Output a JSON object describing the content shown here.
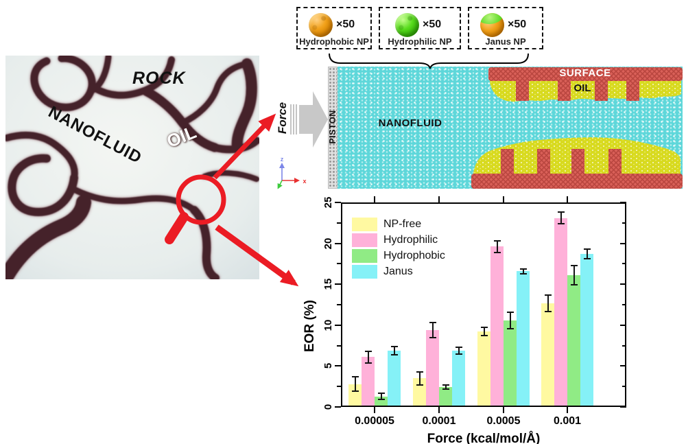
{
  "photo": {
    "rock_label": "ROCK",
    "nanofluid_label": "NANOFLUID",
    "oil_label": "OIL"
  },
  "np_legend": {
    "items": [
      {
        "label": "Hydrophobic NP",
        "count_label": "×50",
        "color": "#e8920e"
      },
      {
        "label": "Hydrophilic NP",
        "count_label": "×50",
        "color": "#44cc11"
      },
      {
        "label": "Janus NP",
        "count_label": "×50",
        "color": "#e8920e/#44cc11"
      }
    ]
  },
  "simulation": {
    "force_label": "Force",
    "piston_label": "PISTON",
    "nanofluid_label": "NANOFLUID",
    "surface_label": "SURFACE",
    "oil_label": "OIL",
    "axis_x_label": "x",
    "axis_z_label": "z",
    "colors": {
      "nanofluid": "#5ed7da",
      "surface": "#d96058",
      "oil": "#d8da1f",
      "piston": "#d9d9d9",
      "annotation_red": "#eb1c24"
    }
  },
  "chart_data": {
    "type": "bar",
    "title": "",
    "xlabel": "Force (kcal/mol/Å)",
    "ylabel": "EOR (%)",
    "categories": [
      "0.00005",
      "0.0001",
      "0.0005",
      "0.001"
    ],
    "series": [
      {
        "name": "NP-free",
        "color": "#fff9a1",
        "values": [
          2.8,
          3.5,
          9.2,
          12.7
        ],
        "errors": [
          0.9,
          0.8,
          0.5,
          1.0
        ]
      },
      {
        "name": "Hydrophilic",
        "color": "#ffb1d9",
        "values": [
          6.1,
          9.4,
          19.6,
          23.1
        ],
        "errors": [
          0.7,
          0.9,
          0.7,
          0.7
        ]
      },
      {
        "name": "Hydrophobic",
        "color": "#90eb85",
        "values": [
          1.3,
          2.4,
          10.6,
          16.1
        ],
        "errors": [
          0.35,
          0.25,
          1.0,
          1.2
        ]
      },
      {
        "name": "Janus",
        "color": "#85f1f7",
        "values": [
          6.9,
          6.9,
          16.6,
          18.7
        ],
        "errors": [
          0.5,
          0.4,
          0.3,
          0.6
        ]
      }
    ],
    "ylim": [
      0,
      25
    ],
    "yticks": [
      0,
      5,
      10,
      15,
      20,
      25
    ],
    "legend_position": "top-left",
    "grid": false,
    "error_bars": true
  }
}
